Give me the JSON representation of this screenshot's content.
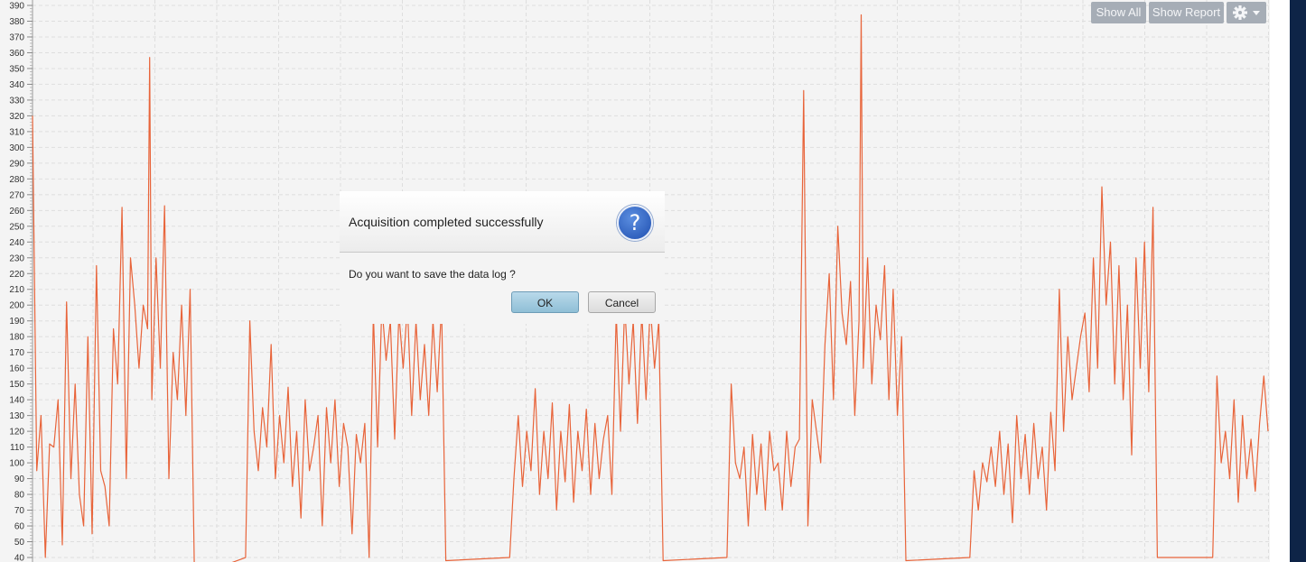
{
  "toolbar": {
    "show_all_label": "Show All",
    "show_report_label": "Show Report",
    "settings_icon": "gear-icon",
    "dropdown_icon": "caret-down-icon"
  },
  "dialog": {
    "title": "Acquisition completed successfully",
    "message": "Do you want to save the data log ?",
    "icon": "question-icon",
    "ok_label": "OK",
    "cancel_label": "Cancel"
  },
  "colors": {
    "line": "#e8643a",
    "plot_background": "#f4f4f4",
    "grid": "#dedede",
    "toolbar_button": "#a6adb6",
    "ok_button": "#a8cfe2",
    "right_border": "#0e2447"
  },
  "chart_data": {
    "type": "line",
    "title": "",
    "xlabel": "",
    "ylabel": "",
    "ylim": [
      40,
      390
    ],
    "y_ticks": [
      40,
      50,
      60,
      70,
      80,
      90,
      100,
      110,
      120,
      130,
      140,
      150,
      160,
      170,
      180,
      190,
      200,
      210,
      220,
      230,
      240,
      250,
      260,
      270,
      280,
      290,
      300,
      310,
      320,
      330,
      340,
      350,
      360,
      370,
      380,
      390
    ],
    "grid": true,
    "series": [
      {
        "points": [
          [
            0,
            320
          ],
          [
            2,
            95
          ],
          [
            4,
            130
          ],
          [
            6,
            40
          ],
          [
            8,
            112
          ],
          [
            10,
            110
          ],
          [
            12,
            140
          ],
          [
            14,
            48
          ],
          [
            16,
            202
          ],
          [
            18,
            90
          ],
          [
            20,
            150
          ],
          [
            22,
            80
          ],
          [
            24,
            60
          ],
          [
            26,
            180
          ],
          [
            28,
            55
          ],
          [
            30,
            225
          ],
          [
            32,
            95
          ],
          [
            34,
            85
          ],
          [
            36,
            60
          ],
          [
            38,
            185
          ],
          [
            40,
            150
          ],
          [
            42,
            262
          ],
          [
            44,
            90
          ],
          [
            46,
            230
          ],
          [
            48,
            200
          ],
          [
            50,
            160
          ],
          [
            52,
            200
          ],
          [
            54,
            185
          ],
          [
            55,
            357
          ],
          [
            56,
            140
          ],
          [
            58,
            230
          ],
          [
            60,
            160
          ],
          [
            62,
            263
          ],
          [
            64,
            90
          ],
          [
            66,
            170
          ],
          [
            68,
            140
          ],
          [
            70,
            200
          ],
          [
            72,
            130
          ],
          [
            74,
            210
          ],
          [
            76,
            28
          ],
          [
            100,
            40
          ],
          [
            102,
            190
          ],
          [
            104,
            120
          ],
          [
            106,
            95
          ],
          [
            108,
            135
          ],
          [
            110,
            110
          ],
          [
            112,
            175
          ],
          [
            114,
            90
          ],
          [
            116,
            130
          ],
          [
            118,
            100
          ],
          [
            120,
            148
          ],
          [
            122,
            85
          ],
          [
            124,
            120
          ],
          [
            126,
            65
          ],
          [
            128,
            140
          ],
          [
            130,
            95
          ],
          [
            132,
            110
          ],
          [
            134,
            130
          ],
          [
            136,
            60
          ],
          [
            138,
            135
          ],
          [
            140,
            100
          ],
          [
            142,
            140
          ],
          [
            144,
            85
          ],
          [
            146,
            125
          ],
          [
            148,
            110
          ],
          [
            150,
            55
          ],
          [
            152,
            118
          ],
          [
            154,
            100
          ],
          [
            156,
            125
          ],
          [
            158,
            40
          ],
          [
            160,
            195
          ],
          [
            162,
            110
          ],
          [
            164,
            200
          ],
          [
            166,
            165
          ],
          [
            168,
            190
          ],
          [
            170,
            115
          ],
          [
            172,
            195
          ],
          [
            174,
            160
          ],
          [
            176,
            200
          ],
          [
            178,
            130
          ],
          [
            180,
            190
          ],
          [
            182,
            140
          ],
          [
            184,
            175
          ],
          [
            186,
            130
          ],
          [
            188,
            190
          ],
          [
            190,
            145
          ],
          [
            192,
            200
          ],
          [
            194,
            38
          ],
          [
            224,
            40
          ],
          [
            226,
            90
          ],
          [
            228,
            130
          ],
          [
            230,
            85
          ],
          [
            232,
            120
          ],
          [
            234,
            95
          ],
          [
            236,
            147
          ],
          [
            238,
            80
          ],
          [
            240,
            120
          ],
          [
            242,
            90
          ],
          [
            244,
            138
          ],
          [
            246,
            70
          ],
          [
            248,
            120
          ],
          [
            250,
            88
          ],
          [
            252,
            137
          ],
          [
            254,
            75
          ],
          [
            256,
            120
          ],
          [
            258,
            95
          ],
          [
            260,
            134
          ],
          [
            262,
            80
          ],
          [
            264,
            125
          ],
          [
            266,
            90
          ],
          [
            268,
            115
          ],
          [
            270,
            130
          ],
          [
            272,
            80
          ],
          [
            274,
            195
          ],
          [
            276,
            120
          ],
          [
            278,
            200
          ],
          [
            280,
            150
          ],
          [
            282,
            190
          ],
          [
            284,
            125
          ],
          [
            286,
            195
          ],
          [
            288,
            140
          ],
          [
            290,
            200
          ],
          [
            292,
            160
          ],
          [
            294,
            190
          ],
          [
            296,
            38
          ],
          [
            326,
            40
          ],
          [
            328,
            150
          ],
          [
            330,
            100
          ],
          [
            332,
            90
          ],
          [
            334,
            110
          ],
          [
            336,
            60
          ],
          [
            338,
            118
          ],
          [
            340,
            80
          ],
          [
            342,
            112
          ],
          [
            344,
            70
          ],
          [
            346,
            120
          ],
          [
            348,
            95
          ],
          [
            350,
            100
          ],
          [
            352,
            70
          ],
          [
            354,
            120
          ],
          [
            356,
            85
          ],
          [
            358,
            110
          ],
          [
            360,
            115
          ],
          [
            362,
            336
          ],
          [
            364,
            60
          ],
          [
            366,
            140
          ],
          [
            368,
            120
          ],
          [
            370,
            100
          ],
          [
            372,
            175
          ],
          [
            374,
            220
          ],
          [
            376,
            140
          ],
          [
            378,
            250
          ],
          [
            380,
            195
          ],
          [
            382,
            175
          ],
          [
            384,
            215
          ],
          [
            386,
            130
          ],
          [
            388,
            190
          ],
          [
            389,
            384
          ],
          [
            390,
            160
          ],
          [
            392,
            230
          ],
          [
            394,
            150
          ],
          [
            396,
            200
          ],
          [
            398,
            178
          ],
          [
            400,
            225
          ],
          [
            402,
            140
          ],
          [
            404,
            210
          ],
          [
            406,
            130
          ],
          [
            408,
            180
          ],
          [
            410,
            38
          ],
          [
            440,
            40
          ],
          [
            442,
            95
          ],
          [
            444,
            70
          ],
          [
            446,
            100
          ],
          [
            448,
            88
          ],
          [
            450,
            110
          ],
          [
            452,
            85
          ],
          [
            454,
            120
          ],
          [
            456,
            80
          ],
          [
            458,
            112
          ],
          [
            460,
            62
          ],
          [
            462,
            130
          ],
          [
            464,
            90
          ],
          [
            466,
            118
          ],
          [
            468,
            80
          ],
          [
            470,
            125
          ],
          [
            472,
            90
          ],
          [
            474,
            110
          ],
          [
            476,
            70
          ],
          [
            478,
            132
          ],
          [
            480,
            95
          ],
          [
            482,
            210
          ],
          [
            484,
            120
          ],
          [
            486,
            180
          ],
          [
            488,
            140
          ],
          [
            490,
            160
          ],
          [
            492,
            180
          ],
          [
            494,
            195
          ],
          [
            496,
            145
          ],
          [
            498,
            230
          ],
          [
            500,
            160
          ],
          [
            502,
            275
          ],
          [
            504,
            200
          ],
          [
            506,
            240
          ],
          [
            508,
            150
          ],
          [
            510,
            225
          ],
          [
            512,
            140
          ],
          [
            514,
            200
          ],
          [
            516,
            105
          ],
          [
            518,
            230
          ],
          [
            520,
            160
          ],
          [
            522,
            240
          ],
          [
            524,
            145
          ],
          [
            526,
            262
          ],
          [
            528,
            40
          ],
          [
            554,
            40
          ],
          [
            556,
            155
          ],
          [
            558,
            100
          ],
          [
            560,
            120
          ],
          [
            562,
            90
          ],
          [
            564,
            140
          ],
          [
            566,
            75
          ],
          [
            568,
            130
          ],
          [
            570,
            90
          ],
          [
            572,
            115
          ],
          [
            574,
            82
          ],
          [
            576,
            125
          ],
          [
            578,
            155
          ],
          [
            580,
            120
          ]
        ]
      }
    ]
  }
}
